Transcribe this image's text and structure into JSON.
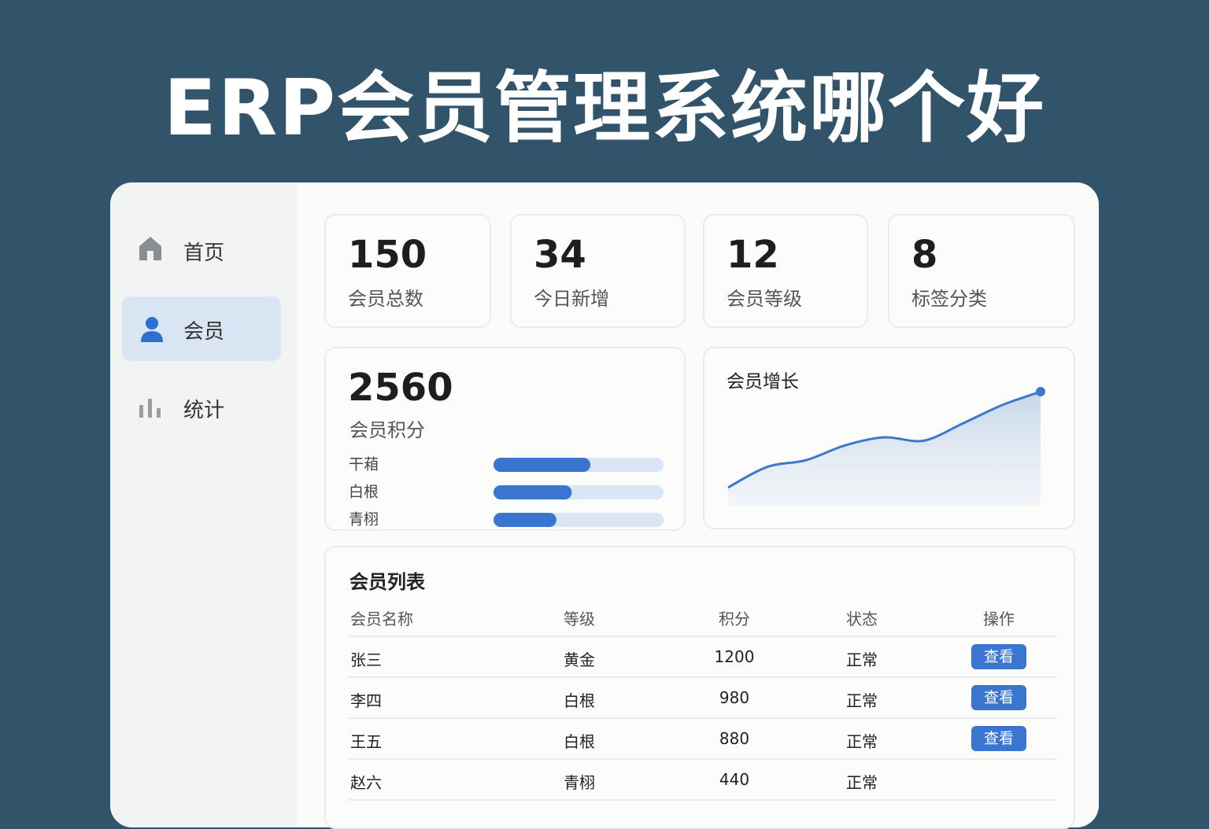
{
  "header": {
    "title": "ERP会员管理系统哪个好"
  },
  "sidebar": {
    "items": [
      "首页",
      "会员",
      "统计"
    ]
  },
  "stats": [
    {
      "value": 150,
      "label": "会员总数"
    },
    {
      "value": 34,
      "label": "今日新增"
    },
    {
      "value": 12,
      "label": "会员等级"
    },
    {
      "value": 8,
      "label": "标签分类"
    }
  ],
  "points": {
    "value": 2560,
    "label": "会员积分"
  },
  "chart_data": [
    {
      "type": "bar",
      "categories": [
        "干葙",
        "白根",
        "青栩"
      ],
      "values": [
        57,
        46,
        37
      ],
      "xlim": [
        0,
        100
      ],
      "color": "#3a76d0",
      "track_color": "#dbe6f4"
    },
    {
      "type": "line",
      "title": "会员增长",
      "categories": [
        null,
        null,
        null,
        null,
        null,
        null,
        null,
        null,
        null
      ],
      "values": [
        16,
        34,
        40,
        53,
        60,
        57,
        72,
        88,
        100
      ],
      "ylim": [
        0,
        100
      ],
      "color": "#3d78cf"
    }
  ],
  "table": {
    "title": "会员列表",
    "columns": [
      "会员名称",
      "等级",
      "积分",
      "状态",
      "操作"
    ],
    "rows": [
      [
        "张三",
        "黄金",
        1200,
        "正常",
        "查看"
      ],
      [
        "李四",
        "白根",
        980,
        "正常",
        "查看"
      ],
      [
        "王五",
        "白根",
        880,
        "正常",
        "查看"
      ],
      [
        "赵六",
        "青栩",
        440,
        "正常",
        null
      ]
    ]
  }
}
